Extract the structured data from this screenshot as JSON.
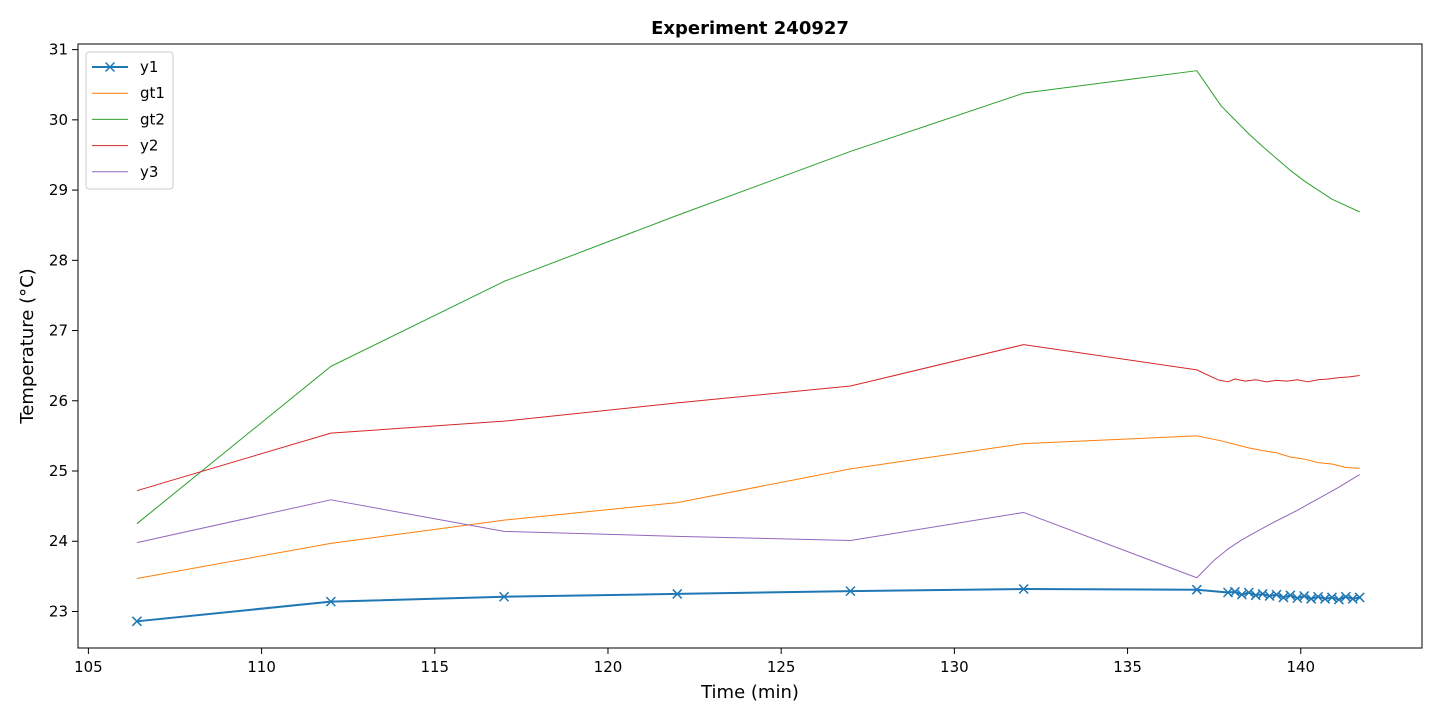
{
  "chart_data": {
    "type": "line",
    "title": "Experiment 240927",
    "xlabel": "Time (min)",
    "ylabel": "Temperature (°C)",
    "xlim": [
      104.7,
      143.5
    ],
    "ylim": [
      22.48,
      31.08
    ],
    "xticks": [
      105,
      110,
      115,
      120,
      125,
      130,
      135,
      140
    ],
    "yticks": [
      23,
      24,
      25,
      26,
      27,
      28,
      29,
      30,
      31
    ],
    "grid": false,
    "legend": "top-left",
    "series": [
      {
        "name": "y1",
        "color": "#1f77b4",
        "marker": "x",
        "linewidth": 2,
        "x": [
          106.4,
          112.0,
          117.0,
          122.0,
          127.0,
          132.0,
          137.0,
          137.9,
          138.1,
          138.3,
          138.5,
          138.7,
          138.9,
          139.1,
          139.3,
          139.5,
          139.7,
          139.9,
          140.1,
          140.3,
          140.5,
          140.7,
          140.9,
          141.1,
          141.3,
          141.5,
          141.7
        ],
        "y": [
          22.86,
          23.14,
          23.21,
          23.25,
          23.29,
          23.32,
          23.31,
          23.27,
          23.28,
          23.24,
          23.27,
          23.23,
          23.25,
          23.22,
          23.24,
          23.2,
          23.23,
          23.19,
          23.22,
          23.18,
          23.21,
          23.18,
          23.2,
          23.17,
          23.21,
          23.18,
          23.2
        ]
      },
      {
        "name": "gt1",
        "color": "#ff7f0e",
        "marker": "",
        "linewidth": 1,
        "x": [
          106.4,
          112.0,
          117.0,
          122.0,
          127.0,
          132.0,
          137.0,
          137.7,
          138.1,
          138.5,
          138.9,
          139.3,
          139.7,
          140.1,
          140.5,
          140.9,
          141.3,
          141.7
        ],
        "y": [
          23.47,
          23.97,
          24.3,
          24.55,
          25.03,
          25.39,
          25.5,
          25.43,
          25.38,
          25.33,
          25.29,
          25.26,
          25.2,
          25.17,
          25.12,
          25.1,
          25.05,
          25.04
        ]
      },
      {
        "name": "gt2",
        "color": "#2ca02c",
        "marker": "",
        "linewidth": 1,
        "x": [
          106.4,
          112.0,
          117.0,
          122.0,
          127.0,
          132.0,
          137.0,
          137.7,
          138.1,
          138.5,
          138.9,
          139.3,
          139.7,
          140.1,
          140.5,
          140.9,
          141.3,
          141.7
        ],
        "y": [
          24.25,
          26.49,
          27.7,
          28.64,
          29.55,
          30.38,
          30.7,
          30.2,
          30.0,
          29.8,
          29.62,
          29.45,
          29.28,
          29.13,
          29.0,
          28.87,
          28.78,
          28.69
        ]
      },
      {
        "name": "y2",
        "color": "#d62728",
        "marker": "",
        "linewidth": 1,
        "x": [
          106.4,
          112.0,
          117.0,
          122.0,
          127.0,
          132.0,
          137.0,
          137.6,
          137.9,
          138.1,
          138.4,
          138.7,
          139.0,
          139.3,
          139.6,
          139.9,
          140.2,
          140.5,
          140.8,
          141.1,
          141.4,
          141.7
        ],
        "y": [
          24.72,
          25.54,
          25.71,
          25.97,
          26.21,
          26.8,
          26.44,
          26.3,
          26.27,
          26.31,
          26.28,
          26.3,
          26.27,
          26.29,
          26.28,
          26.3,
          26.27,
          26.3,
          26.31,
          26.33,
          26.34,
          26.36
        ]
      },
      {
        "name": "y3",
        "color": "#9467bd",
        "marker": "",
        "linewidth": 1,
        "x": [
          106.4,
          112.0,
          117.0,
          122.0,
          127.0,
          132.0,
          137.0,
          137.5,
          137.9,
          138.3,
          138.7,
          139.1,
          139.5,
          139.9,
          140.3,
          140.7,
          141.1,
          141.4,
          141.7
        ],
        "y": [
          23.98,
          24.59,
          24.14,
          24.07,
          24.01,
          24.41,
          23.48,
          23.73,
          23.89,
          24.02,
          24.13,
          24.24,
          24.34,
          24.44,
          24.55,
          24.66,
          24.77,
          24.86,
          24.95
        ]
      }
    ]
  }
}
